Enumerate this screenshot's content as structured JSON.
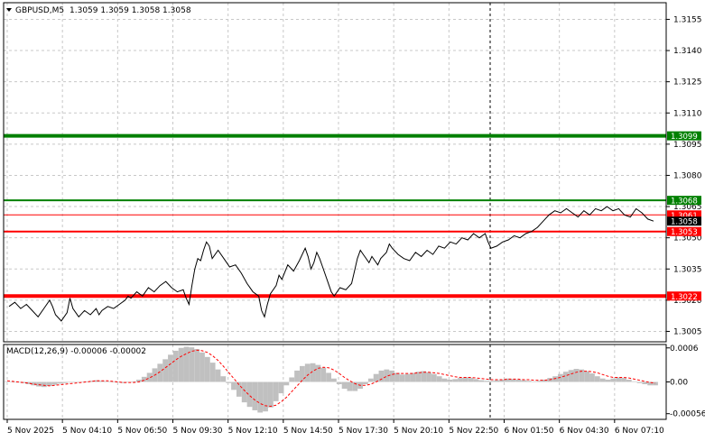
{
  "header": {
    "symbol": "GBPUSD,M5",
    "ohlc": "1.3059 1.3059 1.3058 1.3058"
  },
  "macd": {
    "label": "MACD(12,26,9) -0.00006 -0.00002",
    "axis_ticks": [
      "0.0006",
      "0.00",
      "-0.00056"
    ],
    "histogram_color": "#c0c0c0",
    "signal_color": "#ff0000"
  },
  "price_axis": {
    "ticks": [
      "1.3155",
      "1.3140",
      "1.3125",
      "1.3110",
      "1.3095",
      "1.3080",
      "1.3065",
      "1.3050",
      "1.3035",
      "1.3020",
      "1.3005"
    ],
    "current_price": "1.3058"
  },
  "time_axis": {
    "labels": [
      "5 Nov 2025",
      "5 Nov 04:10",
      "5 Nov 06:50",
      "5 Nov 09:30",
      "5 Nov 12:10",
      "5 Nov 14:50",
      "5 Nov 17:30",
      "5 Nov 20:10",
      "5 Nov 22:50",
      "6 Nov 01:50",
      "6 Nov 04:30",
      "6 Nov 07:10"
    ]
  },
  "levels": [
    {
      "name": "level-1-3099",
      "price": 1.3099,
      "label": "1.3099",
      "color": "#008000"
    },
    {
      "name": "level-1-3068",
      "price": 1.3068,
      "label": "1.3068",
      "color": "#008000"
    },
    {
      "name": "level-1-3061",
      "price": 1.3061,
      "label": "1.3061",
      "color": "#ff0000"
    },
    {
      "name": "level-1-3053",
      "price": 1.3053,
      "label": "1.3053",
      "color": "#ff0000"
    },
    {
      "name": "level-1-3022",
      "price": 1.3022,
      "label": "1.3022",
      "color": "#ff0000"
    }
  ],
  "colors": {
    "grid": "#c8c8c8",
    "price_line": "#000000",
    "background": "#ffffff"
  },
  "chart_data": {
    "type": "line",
    "price_range": [
      1.3,
      1.3163
    ],
    "points": [
      [
        0,
        1.3017
      ],
      [
        2,
        1.3019
      ],
      [
        4,
        1.3016
      ],
      [
        6,
        1.3018
      ],
      [
        8,
        1.3015
      ],
      [
        10,
        1.3012
      ],
      [
        12,
        1.3016
      ],
      [
        14,
        1.302
      ],
      [
        15,
        1.3017
      ],
      [
        16,
        1.3013
      ],
      [
        18,
        1.301
      ],
      [
        20,
        1.3014
      ],
      [
        21,
        1.3021
      ],
      [
        22,
        1.3016
      ],
      [
        24,
        1.3012
      ],
      [
        26,
        1.3015
      ],
      [
        28,
        1.3013
      ],
      [
        30,
        1.3016
      ],
      [
        31,
        1.3013
      ],
      [
        32,
        1.3015
      ],
      [
        34,
        1.3017
      ],
      [
        36,
        1.3016
      ],
      [
        38,
        1.3018
      ],
      [
        40,
        1.302
      ],
      [
        41,
        1.3022
      ],
      [
        42,
        1.3021
      ],
      [
        44,
        1.3024
      ],
      [
        46,
        1.3022
      ],
      [
        48,
        1.3026
      ],
      [
        50,
        1.3024
      ],
      [
        52,
        1.3027
      ],
      [
        54,
        1.3029
      ],
      [
        56,
        1.3026
      ],
      [
        58,
        1.3024
      ],
      [
        60,
        1.3025
      ],
      [
        61,
        1.3021
      ],
      [
        62,
        1.3018
      ],
      [
        63,
        1.3027
      ],
      [
        64,
        1.3035
      ],
      [
        65,
        1.304
      ],
      [
        66,
        1.3039
      ],
      [
        67,
        1.3044
      ],
      [
        68,
        1.3048
      ],
      [
        69,
        1.3046
      ],
      [
        70,
        1.304
      ],
      [
        72,
        1.3044
      ],
      [
        74,
        1.304
      ],
      [
        76,
        1.3036
      ],
      [
        78,
        1.3037
      ],
      [
        80,
        1.3033
      ],
      [
        82,
        1.3028
      ],
      [
        84,
        1.3024
      ],
      [
        86,
        1.3022
      ],
      [
        87,
        1.3015
      ],
      [
        88,
        1.3012
      ],
      [
        89,
        1.3018
      ],
      [
        90,
        1.3023
      ],
      [
        92,
        1.3027
      ],
      [
        93,
        1.3032
      ],
      [
        94,
        1.303
      ],
      [
        96,
        1.3037
      ],
      [
        98,
        1.3034
      ],
      [
        100,
        1.3039
      ],
      [
        102,
        1.3045
      ],
      [
        103,
        1.3041
      ],
      [
        104,
        1.3035
      ],
      [
        105,
        1.3038
      ],
      [
        106,
        1.3043
      ],
      [
        107,
        1.304
      ],
      [
        108,
        1.3036
      ],
      [
        110,
        1.3028
      ],
      [
        111,
        1.3024
      ],
      [
        112,
        1.3022
      ],
      [
        114,
        1.3026
      ],
      [
        116,
        1.3025
      ],
      [
        118,
        1.3028
      ],
      [
        119,
        1.3034
      ],
      [
        120,
        1.304
      ],
      [
        121,
        1.3044
      ],
      [
        122,
        1.3042
      ],
      [
        124,
        1.3038
      ],
      [
        125,
        1.3041
      ],
      [
        126,
        1.3039
      ],
      [
        127,
        1.3037
      ],
      [
        128,
        1.304
      ],
      [
        130,
        1.3043
      ],
      [
        131,
        1.3047
      ],
      [
        132,
        1.3045
      ],
      [
        134,
        1.3042
      ],
      [
        136,
        1.304
      ],
      [
        138,
        1.3039
      ],
      [
        140,
        1.3043
      ],
      [
        142,
        1.3041
      ],
      [
        144,
        1.3044
      ],
      [
        146,
        1.3042
      ],
      [
        148,
        1.3046
      ],
      [
        150,
        1.3045
      ],
      [
        152,
        1.3048
      ],
      [
        154,
        1.3047
      ],
      [
        156,
        1.305
      ],
      [
        158,
        1.3049
      ],
      [
        160,
        1.3052
      ],
      [
        162,
        1.305
      ],
      [
        164,
        1.3052
      ],
      [
        165,
        1.3048
      ],
      [
        166,
        1.3045
      ],
      [
        168,
        1.3046
      ],
      [
        170,
        1.3048
      ],
      [
        172,
        1.3049
      ],
      [
        174,
        1.3051
      ],
      [
        176,
        1.305
      ],
      [
        178,
        1.3052
      ],
      [
        180,
        1.3053
      ],
      [
        182,
        1.3055
      ],
      [
        184,
        1.3058
      ],
      [
        186,
        1.3061
      ],
      [
        188,
        1.3063
      ],
      [
        190,
        1.3062
      ],
      [
        192,
        1.3064
      ],
      [
        194,
        1.3062
      ],
      [
        196,
        1.306
      ],
      [
        198,
        1.3063
      ],
      [
        200,
        1.3061
      ],
      [
        202,
        1.3064
      ],
      [
        204,
        1.3063
      ],
      [
        206,
        1.3065
      ],
      [
        208,
        1.3063
      ],
      [
        210,
        1.3064
      ],
      [
        212,
        1.3061
      ],
      [
        214,
        1.306
      ],
      [
        216,
        1.3064
      ],
      [
        218,
        1.3062
      ],
      [
        220,
        1.3059
      ],
      [
        222,
        1.3058
      ]
    ],
    "macd_histogram": [
      1e-05,
      0.0,
      -1e-05,
      -2e-05,
      -4e-05,
      -6e-05,
      -8e-05,
      -9e-05,
      -7e-05,
      -5e-05,
      -3e-05,
      -2e-05,
      -1e-05,
      -1e-05,
      0.0,
      1e-05,
      2e-05,
      3e-05,
      2e-05,
      1e-05,
      0.0,
      -1e-05,
      -2e-05,
      -1e-05,
      1e-05,
      4e-05,
      9e-05,
      0.00016,
      0.00024,
      0.00032,
      0.0004,
      0.00048,
      0.00055,
      0.0006,
      0.00062,
      0.00061,
      0.00058,
      0.00052,
      0.00044,
      0.00034,
      0.00022,
      0.0001,
      -2e-05,
      -0.00014,
      -0.00026,
      -0.00036,
      -0.00044,
      -0.0005,
      -0.00054,
      -0.00052,
      -0.00045,
      -0.00034,
      -0.0002,
      -6e-05,
      8e-05,
      0.0002,
      0.00028,
      0.00032,
      0.00033,
      0.0003,
      0.00025,
      0.00016,
      6e-05,
      -4e-05,
      -0.00012,
      -0.00016,
      -0.00016,
      -0.00012,
      -4e-05,
      6e-05,
      0.00014,
      0.0002,
      0.00022,
      0.0002,
      0.00016,
      0.00013,
      0.00014,
      0.00016,
      0.00018,
      0.00019,
      0.00017,
      0.00014,
      0.0001,
      6e-05,
      4e-05,
      5e-05,
      7e-05,
      8e-05,
      7e-05,
      5e-05,
      3e-05,
      2e-05,
      2e-05,
      3e-05,
      4e-05,
      6e-05,
      5e-05,
      4e-05,
      3e-05,
      2e-05,
      1e-05,
      2e-05,
      4e-05,
      7e-05,
      0.0001,
      0.00014,
      0.00018,
      0.00021,
      0.00023,
      0.00022,
      0.00019,
      0.00015,
      0.0001,
      6e-05,
      4e-05,
      6e-05,
      8e-05,
      7e-05,
      4e-05,
      1e-05,
      -2e-05,
      -4e-05,
      -6e-05,
      -6e-05
    ],
    "macd_signal": [
      2e-05,
      1e-05,
      0.0,
      -1e-05,
      -2e-05,
      -4e-05,
      -5e-05,
      -6e-05,
      -7e-05,
      -6e-05,
      -5e-05,
      -4e-05,
      -3e-05,
      -2e-05,
      -1e-05,
      0.0,
      1e-05,
      2e-05,
      2e-05,
      2e-05,
      1e-05,
      0.0,
      -1e-05,
      -1e-05,
      -1e-05,
      0.0,
      3e-05,
      7e-05,
      0.00012,
      0.00018,
      0.00025,
      0.00032,
      0.00039,
      0.00045,
      0.0005,
      0.00054,
      0.00056,
      0.00055,
      0.00052,
      0.00046,
      0.00038,
      0.00028,
      0.00017,
      6e-05,
      -5e-05,
      -0.00015,
      -0.00024,
      -0.00032,
      -0.00038,
      -0.00042,
      -0.00043,
      -0.00041,
      -0.00035,
      -0.00027,
      -0.00017,
      -7e-05,
      3e-05,
      0.00012,
      0.00019,
      0.00024,
      0.00026,
      0.00025,
      0.00021,
      0.00015,
      8e-05,
      2e-05,
      -3e-05,
      -6e-05,
      -6e-05,
      -4e-05,
      0.0,
      5e-05,
      0.0001,
      0.00013,
      0.00015,
      0.00015,
      0.00015,
      0.00015,
      0.00016,
      0.00017,
      0.00017,
      0.00016,
      0.00015,
      0.00013,
      0.00011,
      9e-05,
      8e-05,
      8e-05,
      8e-05,
      7e-05,
      6e-05,
      5e-05,
      4e-05,
      4e-05,
      4e-05,
      5e-05,
      5e-05,
      5e-05,
      4e-05,
      4e-05,
      3e-05,
      3e-05,
      3e-05,
      4e-05,
      6e-05,
      8e-05,
      0.00011,
      0.00014,
      0.00017,
      0.00019,
      0.00019,
      0.00018,
      0.00016,
      0.00013,
      0.0001,
      8e-05,
      8e-05,
      8e-05,
      7e-05,
      5e-05,
      3e-05,
      1e-05,
      -1e-05,
      -2e-05
    ],
    "macd_range": [
      -0.00066,
      0.00066
    ]
  }
}
